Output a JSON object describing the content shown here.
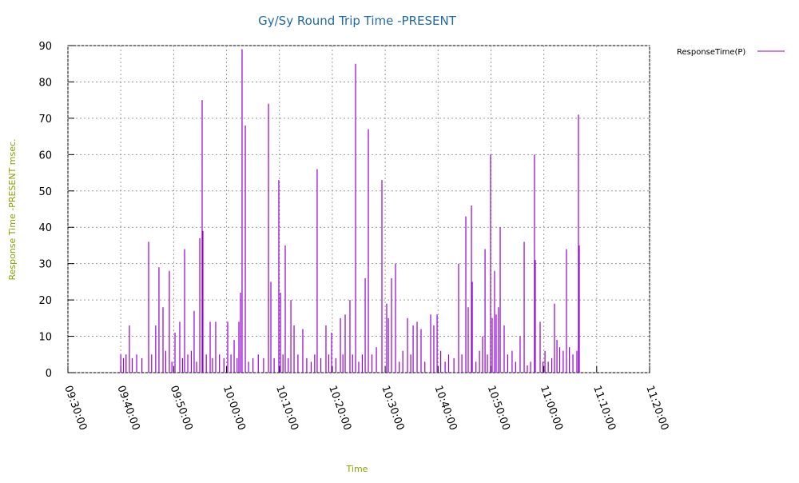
{
  "chart_data": {
    "type": "impulse",
    "title": "Gy/Sy Round Trip Time -PRESENT",
    "x_label": "Time",
    "y_label": "Response Time -PRESENT msec.",
    "grid": true,
    "legend_position": "top-right-outside",
    "xlim": [
      "09:30:00",
      "11:20:00"
    ],
    "xticks": [
      "09:30:00",
      "09:40:00",
      "09:50:00",
      "10:00:00",
      "10:10:00",
      "10:20:00",
      "10:30:00",
      "10:40:00",
      "10:50:00",
      "11:00:00",
      "11:10:00",
      "11:20:00"
    ],
    "ylim": [
      0,
      90
    ],
    "yticks": [
      0,
      10,
      20,
      30,
      40,
      50,
      60,
      70,
      80,
      90
    ],
    "x": [
      "09:40:00",
      "09:40:30",
      "09:41:00",
      "09:41:38",
      "09:42:10",
      "09:43:00",
      "09:44:00",
      "09:45:16",
      "09:45:50",
      "09:46:36",
      "09:47:13",
      "09:47:59",
      "09:48:30",
      "09:49:11",
      "09:49:40",
      "09:50:15",
      "09:51:09",
      "09:51:40",
      "09:52:04",
      "09:52:40",
      "09:53:20",
      "09:53:52",
      "09:54:20",
      "09:54:56",
      "09:55:23",
      "09:55:32",
      "09:56:10",
      "09:56:54",
      "09:57:20",
      "09:57:57",
      "09:58:40",
      "09:59:30",
      "10:00:13",
      "10:00:50",
      "10:01:26",
      "10:02:00",
      "10:02:20",
      "10:02:38",
      "10:02:56",
      "10:03:33",
      "10:04:10",
      "10:05:00",
      "10:06:00",
      "10:07:00",
      "10:07:56",
      "10:08:23",
      "10:09:00",
      "10:09:53",
      "10:10:12",
      "10:10:40",
      "10:11:06",
      "10:11:40",
      "10:12:10",
      "10:12:46",
      "10:13:30",
      "10:14:25",
      "10:15:10",
      "10:16:00",
      "10:16:40",
      "10:17:08",
      "10:17:50",
      "10:18:48",
      "10:19:20",
      "10:19:52",
      "10:20:40",
      "10:21:32",
      "10:22:00",
      "10:22:26",
      "10:23:20",
      "10:23:50",
      "10:24:24",
      "10:25:00",
      "10:25:40",
      "10:26:13",
      "10:26:49",
      "10:27:30",
      "10:28:20",
      "10:29:23",
      "10:30:17",
      "10:30:36",
      "10:31:12",
      "10:31:57",
      "10:32:40",
      "10:33:20",
      "10:34:13",
      "10:34:50",
      "10:35:17",
      "10:36:02",
      "10:36:47",
      "10:37:30",
      "10:38:36",
      "10:39:12",
      "10:39:49",
      "10:40:30",
      "10:41:20",
      "10:42:00",
      "10:43:00",
      "10:43:53",
      "10:44:30",
      "10:45:15",
      "10:45:42",
      "10:46:19",
      "10:46:28",
      "10:47:10",
      "10:47:50",
      "10:48:25",
      "10:48:53",
      "10:49:20",
      "10:49:56",
      "10:50:14",
      "10:50:41",
      "10:50:59",
      "10:51:26",
      "10:51:45",
      "10:52:30",
      "10:53:10",
      "10:54:00",
      "10:54:40",
      "10:55:31",
      "10:56:17",
      "10:56:53",
      "10:57:30",
      "10:58:14",
      "10:58:23",
      "10:59:18",
      "10:59:50",
      "11:00:13",
      "11:00:50",
      "11:01:30",
      "11:02:01",
      "11:02:29",
      "11:03:00",
      "11:03:40",
      "11:04:17",
      "11:04:50",
      "11:05:30",
      "11:06:15",
      "11:06:33",
      "11:06:42"
    ],
    "series": [
      {
        "name": "ResponseTime(P)",
        "color": "#9400d3",
        "values": [
          5,
          4,
          5,
          13,
          4,
          5,
          4,
          36,
          5,
          13,
          29,
          18,
          6,
          28,
          3,
          11,
          14,
          4,
          34,
          5,
          6,
          17,
          3,
          37,
          75,
          39,
          5,
          14,
          4,
          14,
          5,
          4,
          14,
          5,
          9,
          4,
          14,
          22,
          89,
          68,
          3,
          4,
          5,
          4,
          74,
          25,
          4,
          53,
          22,
          5,
          35,
          4,
          20,
          13,
          5,
          12,
          4,
          3,
          5,
          56,
          4,
          13,
          5,
          11,
          4,
          15,
          5,
          16,
          20,
          5,
          85,
          3,
          5,
          26,
          67,
          5,
          7,
          53,
          19,
          15,
          26,
          30,
          3,
          6,
          15,
          5,
          13,
          14,
          12,
          3,
          16,
          13,
          16,
          6,
          3,
          5,
          4,
          30,
          5,
          43,
          18,
          46,
          25,
          3,
          6,
          10,
          34,
          5,
          60,
          15,
          28,
          16,
          18,
          40,
          13,
          5,
          6,
          3,
          10,
          36,
          2,
          3,
          60,
          31,
          14,
          3,
          6,
          3,
          4,
          19,
          9,
          7,
          6,
          34,
          7,
          5,
          6,
          71,
          35
        ]
      }
    ]
  }
}
